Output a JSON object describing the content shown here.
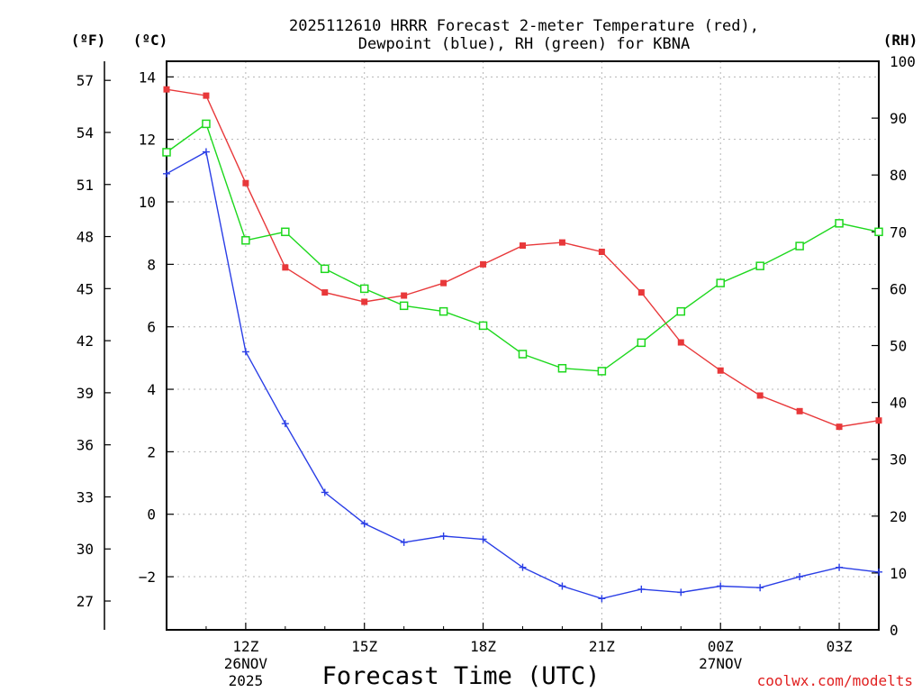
{
  "chart_data": {
    "type": "line",
    "title_line1": "2025112610 HRRR Forecast 2-meter Temperature (red),",
    "title_line2": "Dewpoint (blue), RH (green) for KBNA",
    "xlabel": "Forecast Time (UTC)",
    "x_hours": [
      10,
      11,
      12,
      13,
      14,
      15,
      16,
      17,
      18,
      19,
      20,
      21,
      22,
      23,
      24,
      25,
      26,
      27,
      28
    ],
    "xlim": [
      10,
      28
    ],
    "x_ticks": [
      {
        "hour": 12,
        "label": "12Z",
        "sub1": "26NOV",
        "sub2": "2025"
      },
      {
        "hour": 15,
        "label": "15Z",
        "sub1": "",
        "sub2": ""
      },
      {
        "hour": 18,
        "label": "18Z",
        "sub1": "",
        "sub2": ""
      },
      {
        "hour": 21,
        "label": "21Z",
        "sub1": "",
        "sub2": ""
      },
      {
        "hour": 24,
        "label": "00Z",
        "sub1": "27NOV",
        "sub2": ""
      },
      {
        "hour": 27,
        "label": "03Z",
        "sub1": "",
        "sub2": ""
      }
    ],
    "left_axis_c": {
      "unit": "(ºC)",
      "ylim": [
        -3.7,
        14.5
      ],
      "ticks": [
        -2,
        0,
        2,
        4,
        6,
        8,
        10,
        12,
        14
      ],
      "tick_labels": [
        "−2",
        "0",
        "2",
        "4",
        "6",
        "8",
        "10",
        "12",
        "14"
      ]
    },
    "left_axis_f": {
      "unit": "(ºF)",
      "ticks": [
        27,
        30,
        33,
        36,
        39,
        42,
        45,
        48,
        51,
        54,
        57
      ],
      "tick_labels": [
        "27",
        "30",
        "33",
        "36",
        "39",
        "42",
        "45",
        "48",
        "51",
        "54",
        "57"
      ]
    },
    "right_axis_rh": {
      "unit": "(RH)",
      "ylim": [
        0,
        100
      ],
      "ticks": [
        0,
        10,
        20,
        30,
        40,
        50,
        60,
        70,
        80,
        90,
        100
      ],
      "tick_labels": [
        "0",
        "10",
        "20",
        "30",
        "40",
        "50",
        "60",
        "70",
        "80",
        "90",
        "100"
      ]
    },
    "series": [
      {
        "name": "Temperature",
        "axis": "C",
        "color": "#e8383a",
        "marker": "filled-square",
        "values": [
          13.6,
          13.4,
          10.6,
          7.9,
          7.1,
          6.8,
          7.0,
          7.4,
          8.0,
          8.6,
          8.7,
          8.4,
          7.1,
          5.5,
          4.6,
          3.8,
          3.3,
          2.8,
          3.0
        ]
      },
      {
        "name": "Dewpoint",
        "axis": "C",
        "color": "#2a3ee6",
        "marker": "plus",
        "values": [
          10.9,
          11.6,
          5.2,
          2.9,
          0.7,
          -0.3,
          -0.9,
          -0.7,
          -0.8,
          -1.7,
          -2.3,
          -2.7,
          -2.4,
          -2.5,
          -2.3,
          -2.35,
          -2.0,
          -1.7,
          -1.85
        ]
      },
      {
        "name": "RH",
        "axis": "RH",
        "color": "#1ed81e",
        "marker": "open-square",
        "values": [
          84,
          89,
          68.5,
          70,
          63.5,
          60,
          57,
          56,
          53.5,
          48.5,
          46,
          45.5,
          50.5,
          56,
          61,
          64,
          67.5,
          71.5,
          70
        ]
      }
    ]
  },
  "credit": "coolwx.com/modelts"
}
